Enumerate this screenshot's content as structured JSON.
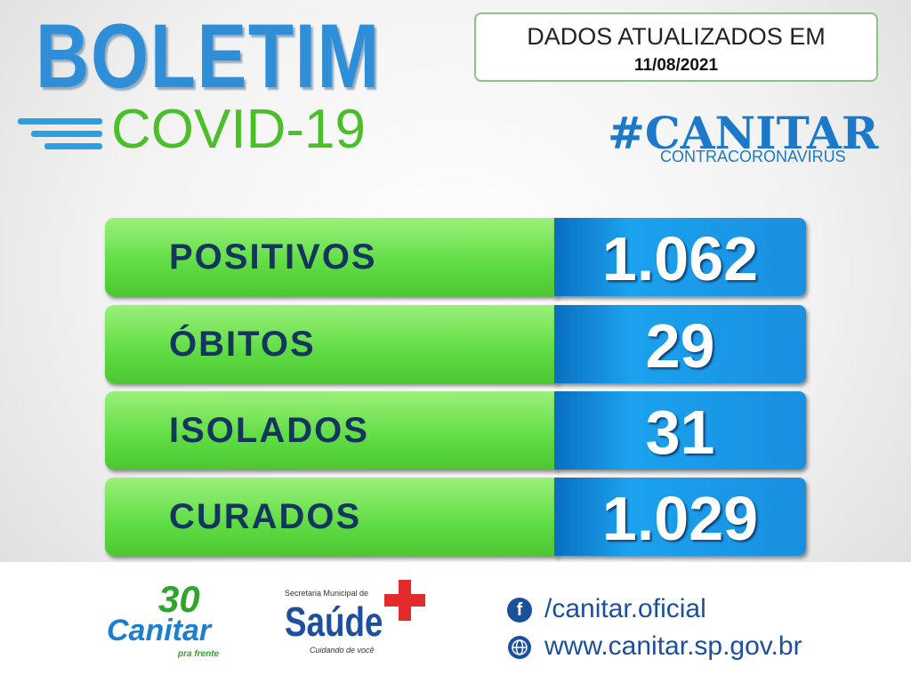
{
  "header": {
    "title": "BOLETIM",
    "subtitle": "COVID-19",
    "update_label": "DADOS ATUALIZADOS EM",
    "update_date": "11/08/2021",
    "hashtag": "#CANITAR",
    "hashtag_sub": "CONTRACORONAVIRUS"
  },
  "table": {
    "rows": [
      [
        "POSITIVOS",
        "1.062"
      ],
      [
        "ÓBITOS",
        "29"
      ],
      [
        "ISOLADOS",
        "31"
      ],
      [
        "CURADOS",
        "1.029"
      ]
    ]
  },
  "footer": {
    "logo_number": "30",
    "logo_name": "Canitar",
    "logo_slogan": "pra frente",
    "health_dept": "Secretaria Municipal de",
    "health_name": "Saúde",
    "health_slogan": "Cuidando de você",
    "facebook_icon": "f",
    "facebook": "/canitar.oficial",
    "website": "www.canitar.sp.gov.br"
  }
}
